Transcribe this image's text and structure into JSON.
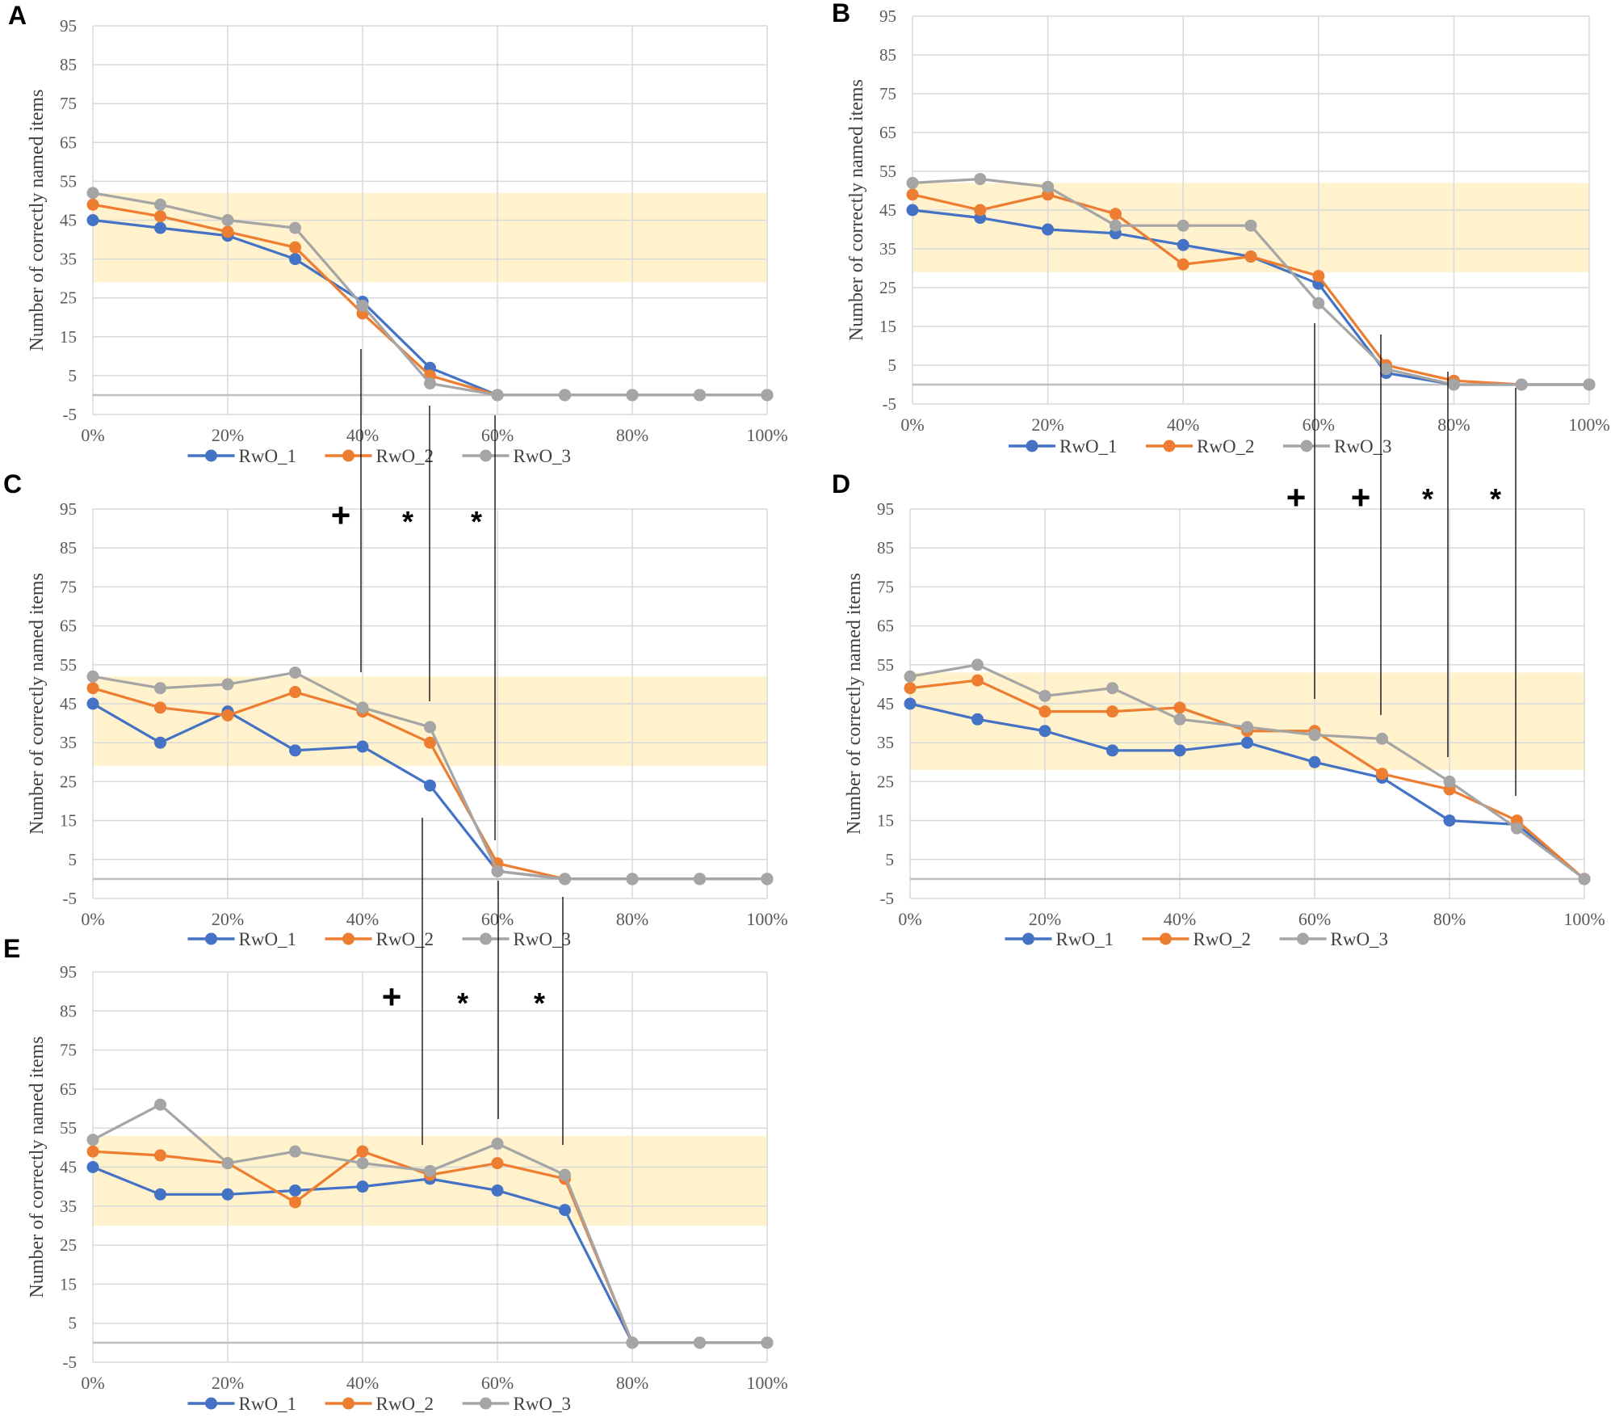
{
  "figure": {
    "series_names": [
      "RwO_1",
      "RwO_2",
      "RwO_3"
    ],
    "series_colors": [
      "#4472c4",
      "#ed7d31",
      "#a5a5a5"
    ],
    "band_color": "#fff2cc",
    "grid_color": "#d9d9d9",
    "axis_color": "#bfbfbf",
    "annotation_color": "#000000"
  },
  "chart_data": [
    {
      "panel": "A",
      "type": "line",
      "ylabel": "Number of correctly named items",
      "ylim": [
        -5,
        95
      ],
      "yticks": [
        "95",
        "85",
        "75",
        "65",
        "55",
        "45",
        "35",
        "25",
        "15",
        "5",
        "-5"
      ],
      "x": [
        "0%",
        "10%",
        "20%",
        "30%",
        "40%",
        "50%",
        "60%",
        "70%",
        "80%",
        "90%",
        "100%"
      ],
      "xtick_labels": [
        "0%",
        "20%",
        "40%",
        "60%",
        "80%",
        "100%"
      ],
      "band": [
        29,
        52
      ],
      "series": [
        {
          "name": "RwO_1",
          "values": [
            45,
            43,
            41,
            35,
            24,
            7,
            0,
            0,
            0,
            0,
            0
          ]
        },
        {
          "name": "RwO_2",
          "values": [
            49,
            46,
            42,
            38,
            21,
            5,
            0,
            0,
            0,
            0,
            0
          ]
        },
        {
          "name": "RwO_3",
          "values": [
            52,
            49,
            45,
            43,
            23,
            3,
            0,
            0,
            0,
            0,
            0
          ]
        }
      ]
    },
    {
      "panel": "B",
      "type": "line",
      "ylabel": "Number of correctly named items",
      "ylim": [
        -5,
        95
      ],
      "yticks": [
        "95",
        "85",
        "75",
        "65",
        "55",
        "45",
        "35",
        "25",
        "15",
        "5",
        "-5"
      ],
      "x": [
        "0%",
        "10%",
        "20%",
        "30%",
        "40%",
        "50%",
        "60%",
        "70%",
        "80%",
        "90%",
        "100%"
      ],
      "xtick_labels": [
        "0%",
        "20%",
        "40%",
        "60%",
        "80%",
        "100%"
      ],
      "band": [
        29,
        52
      ],
      "series": [
        {
          "name": "RwO_1",
          "values": [
            45,
            43,
            40,
            39,
            36,
            33,
            26,
            3,
            0,
            0,
            0
          ]
        },
        {
          "name": "RwO_2",
          "values": [
            49,
            45,
            49,
            44,
            31,
            33,
            28,
            5,
            1,
            0,
            0
          ]
        },
        {
          "name": "RwO_3",
          "values": [
            52,
            53,
            51,
            41,
            41,
            41,
            21,
            4,
            0,
            0,
            0
          ]
        }
      ]
    },
    {
      "panel": "C",
      "type": "line",
      "ylabel": "Number of correctly named items",
      "ylim": [
        -5,
        95
      ],
      "yticks": [
        "95",
        "85",
        "75",
        "65",
        "55",
        "45",
        "35",
        "25",
        "15",
        "5",
        "-5"
      ],
      "x": [
        "0%",
        "10%",
        "20%",
        "30%",
        "40%",
        "50%",
        "60%",
        "70%",
        "80%",
        "90%",
        "100%"
      ],
      "xtick_labels": [
        "0%",
        "20%",
        "40%",
        "60%",
        "80%",
        "100%"
      ],
      "band": [
        29,
        52
      ],
      "series": [
        {
          "name": "RwO_1",
          "values": [
            45,
            35,
            43,
            33,
            34,
            24,
            2,
            0,
            0,
            0,
            0
          ]
        },
        {
          "name": "RwO_2",
          "values": [
            49,
            44,
            42,
            48,
            43,
            35,
            4,
            0,
            0,
            0,
            0
          ]
        },
        {
          "name": "RwO_3",
          "values": [
            52,
            49,
            50,
            53,
            44,
            39,
            2,
            0,
            0,
            0,
            0
          ]
        }
      ]
    },
    {
      "panel": "D",
      "type": "line",
      "ylabel": "Number of correctly named items",
      "ylim": [
        -5,
        95
      ],
      "yticks": [
        "95",
        "85",
        "75",
        "65",
        "55",
        "45",
        "35",
        "25",
        "15",
        "5",
        "-5"
      ],
      "x": [
        "0%",
        "10%",
        "20%",
        "30%",
        "40%",
        "50%",
        "60%",
        "70%",
        "80%",
        "90%",
        "100%"
      ],
      "xtick_labels": [
        "0%",
        "20%",
        "40%",
        "60%",
        "80%",
        "100%"
      ],
      "band": [
        28,
        53
      ],
      "series": [
        {
          "name": "RwO_1",
          "values": [
            45,
            41,
            38,
            33,
            33,
            35,
            30,
            26,
            15,
            14,
            0
          ]
        },
        {
          "name": "RwO_2",
          "values": [
            49,
            51,
            43,
            43,
            44,
            38,
            38,
            27,
            23,
            15,
            0
          ]
        },
        {
          "name": "RwO_3",
          "values": [
            52,
            55,
            47,
            49,
            41,
            39,
            37,
            36,
            25,
            13,
            0
          ]
        }
      ]
    },
    {
      "panel": "E",
      "type": "line",
      "ylabel": "Number of correctly named items",
      "ylim": [
        -5,
        95
      ],
      "yticks": [
        "95",
        "85",
        "75",
        "65",
        "55",
        "45",
        "35",
        "25",
        "15",
        "5",
        "-5"
      ],
      "x": [
        "0%",
        "10%",
        "20%",
        "30%",
        "40%",
        "50%",
        "60%",
        "70%",
        "80%",
        "90%",
        "100%"
      ],
      "xtick_labels": [
        "0%",
        "20%",
        "40%",
        "60%",
        "80%",
        "100%"
      ],
      "band": [
        30,
        53
      ],
      "series": [
        {
          "name": "RwO_1",
          "values": [
            45,
            38,
            38,
            39,
            40,
            42,
            39,
            34,
            0,
            0,
            0
          ]
        },
        {
          "name": "RwO_2",
          "values": [
            49,
            48,
            46,
            36,
            49,
            43,
            46,
            42,
            0,
            0,
            0
          ]
        },
        {
          "name": "RwO_3",
          "values": [
            52,
            61,
            46,
            49,
            46,
            44,
            51,
            43,
            0,
            0,
            0
          ]
        }
      ]
    }
  ],
  "annotations": {
    "significance_markers": [
      {
        "label": "+",
        "panel": "C"
      },
      {
        "label": "*",
        "panel": "C"
      },
      {
        "label": "*",
        "panel": "C"
      },
      {
        "label": "+",
        "panel": "D"
      },
      {
        "label": "+",
        "panel": "D"
      },
      {
        "label": "*",
        "panel": "D"
      },
      {
        "label": "*",
        "panel": "D"
      },
      {
        "label": "+",
        "panel": "E"
      },
      {
        "label": "*",
        "panel": "E"
      },
      {
        "label": "*",
        "panel": "E"
      }
    ]
  }
}
